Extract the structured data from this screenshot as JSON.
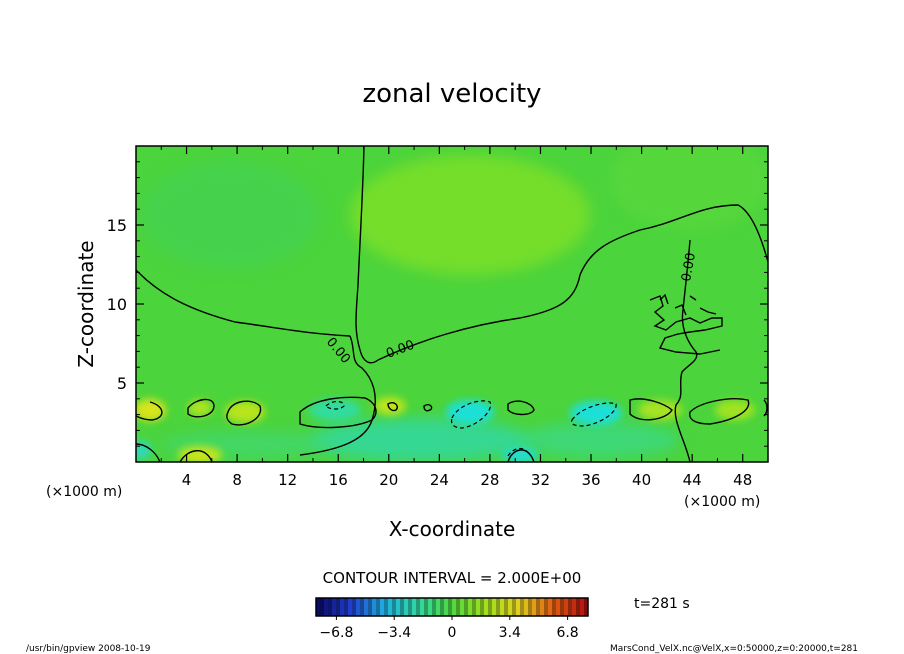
{
  "chart_data": {
    "type": "heatmap",
    "title": "zonal velocity",
    "xlabel": "X-coordinate",
    "ylabel": "Z-coordinate",
    "x_unit": "(×1000 m)",
    "xlim": [
      0,
      50
    ],
    "ylim": [
      0,
      20
    ],
    "x_ticks": [
      "4",
      "8",
      "12",
      "16",
      "20",
      "24",
      "28",
      "32",
      "36",
      "40",
      "44",
      "48"
    ],
    "y_ticks": [
      "5",
      "10",
      "15"
    ],
    "contour_interval": "CONTOUR INTERVAL = 2.000E+00",
    "contour_labels": [
      "0.00",
      "0.00",
      "0.00"
    ],
    "colorbar": {
      "range": [
        -8,
        8
      ],
      "tick_labels": [
        "-6.8",
        "-3.4",
        "0",
        "3.4",
        "6.8"
      ],
      "colors": [
        "#0a0a6a",
        "#2040d0",
        "#20b0e0",
        "#30d8a0",
        "#50d840",
        "#a0e020",
        "#e0d020",
        "#e06010",
        "#b01010"
      ]
    },
    "time_label": "t=281 s",
    "footer_left": "/usr/bin/gpview   2008-10-19",
    "footer_right": "MarsCond_VelX.nc@VelX,x=0:50000,z=0:20000,t=281",
    "field_colors": {
      "background": "#4cd43c",
      "upper_light": "#78e022",
      "positive": "#c8e41e",
      "negative": "#22dcc4"
    }
  }
}
